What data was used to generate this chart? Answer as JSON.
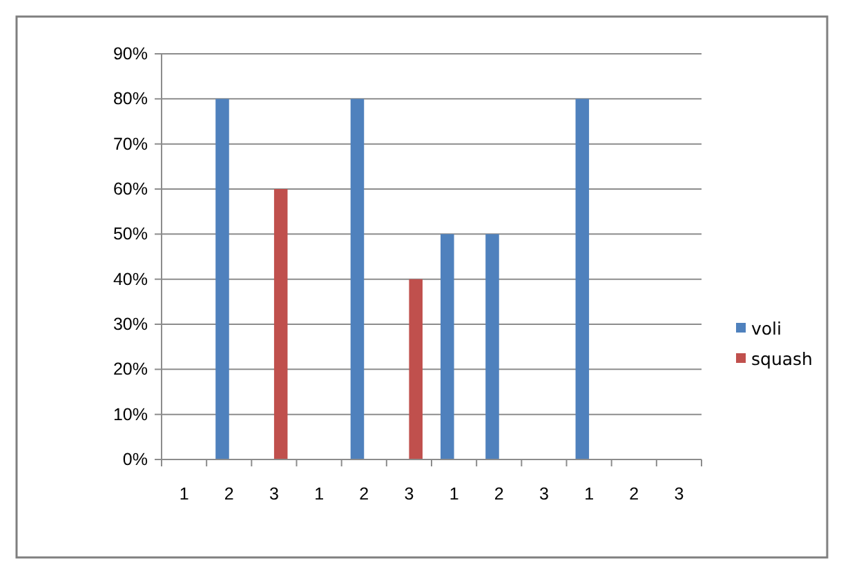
{
  "chart_data": {
    "type": "bar",
    "categories": [
      "1",
      "2",
      "3",
      "1",
      "2",
      "3",
      "1",
      "2",
      "3",
      "1",
      "2",
      "3"
    ],
    "series": [
      {
        "name": "voli",
        "color": "#4f81bd",
        "values": [
          null,
          80,
          null,
          null,
          80,
          null,
          50,
          50,
          null,
          80,
          null,
          null
        ]
      },
      {
        "name": "squash",
        "color": "#c0504d",
        "values": [
          null,
          null,
          60,
          null,
          null,
          40,
          null,
          null,
          null,
          null,
          null,
          null
        ]
      }
    ],
    "ylim": [
      0,
      90
    ],
    "yticks": [
      {
        "value": 0,
        "label": "0%"
      },
      {
        "value": 10,
        "label": "10%"
      },
      {
        "value": 20,
        "label": "20%"
      },
      {
        "value": 30,
        "label": "30%"
      },
      {
        "value": 40,
        "label": "40%"
      },
      {
        "value": 50,
        "label": "50%"
      },
      {
        "value": 60,
        "label": "60%"
      },
      {
        "value": 70,
        "label": "70%"
      },
      {
        "value": 80,
        "label": "80%"
      },
      {
        "value": 90,
        "label": "90%"
      }
    ],
    "grid": "y",
    "legend": "right"
  }
}
